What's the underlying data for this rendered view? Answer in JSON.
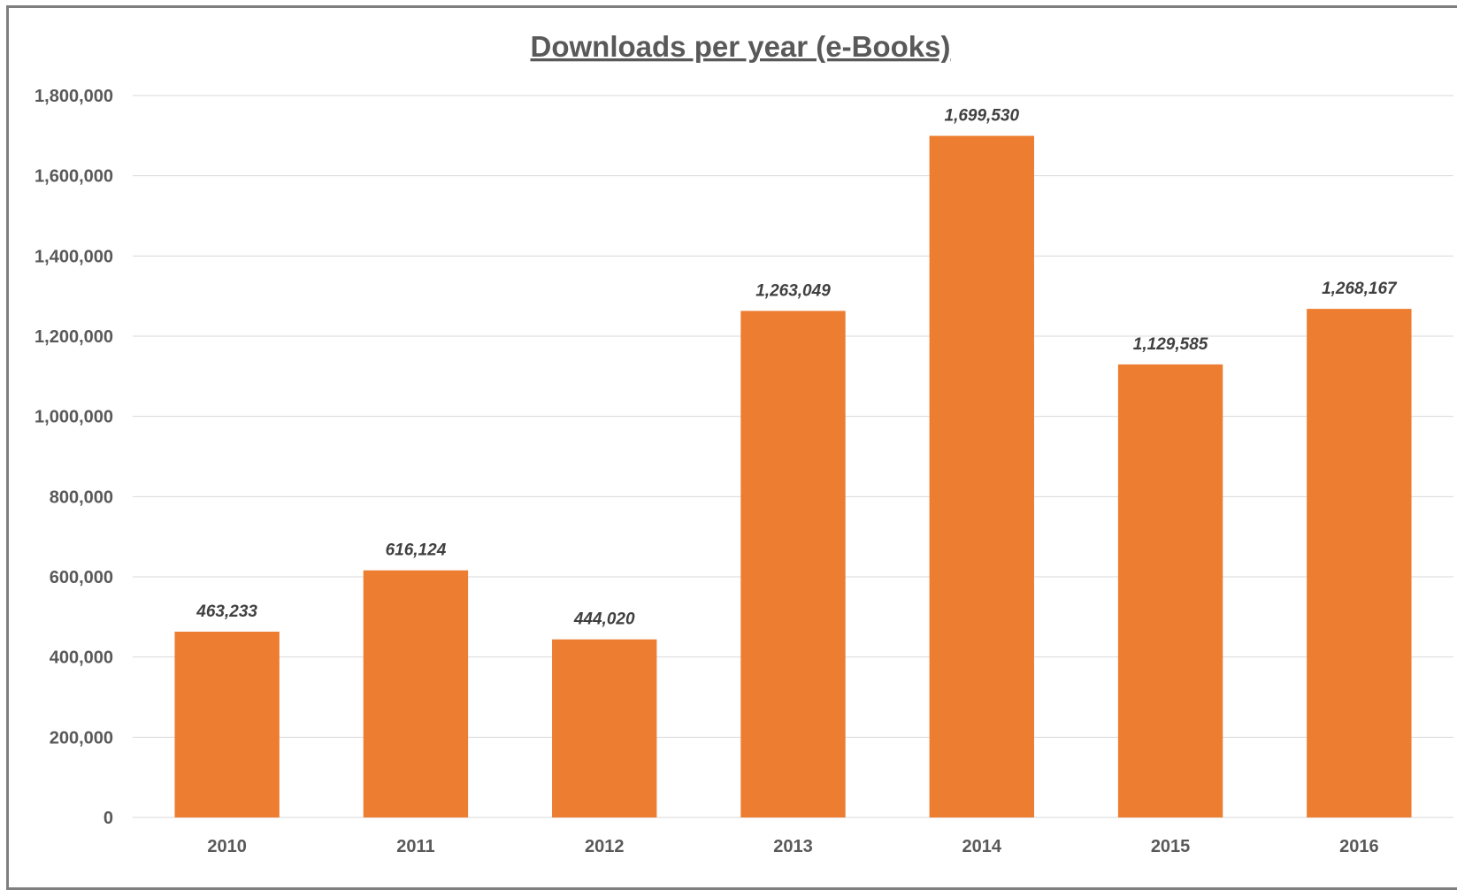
{
  "chart_data": {
    "type": "bar",
    "title": "Downloads per year (e-Books)",
    "xlabel": "",
    "ylabel": "",
    "categories": [
      "2010",
      "2011",
      "2012",
      "2013",
      "2014",
      "2015",
      "2016"
    ],
    "values": [
      463233,
      616124,
      444020,
      1263049,
      1699530,
      1129585,
      1268167
    ],
    "data_labels": [
      "463,233",
      "616,124",
      "444,020",
      "1,263,049",
      "1,699,530",
      "1,129,585",
      "1,268,167"
    ],
    "y_ticks": [
      "0",
      "200,000",
      "400,000",
      "600,000",
      "800,000",
      "1,000,000",
      "1,200,000",
      "1,400,000",
      "1,600,000",
      "1,800,000"
    ],
    "ylim": [
      0,
      1800000
    ],
    "y_step": 200000,
    "grid": true,
    "legend": "none",
    "bar_color": "#ED7D31"
  }
}
